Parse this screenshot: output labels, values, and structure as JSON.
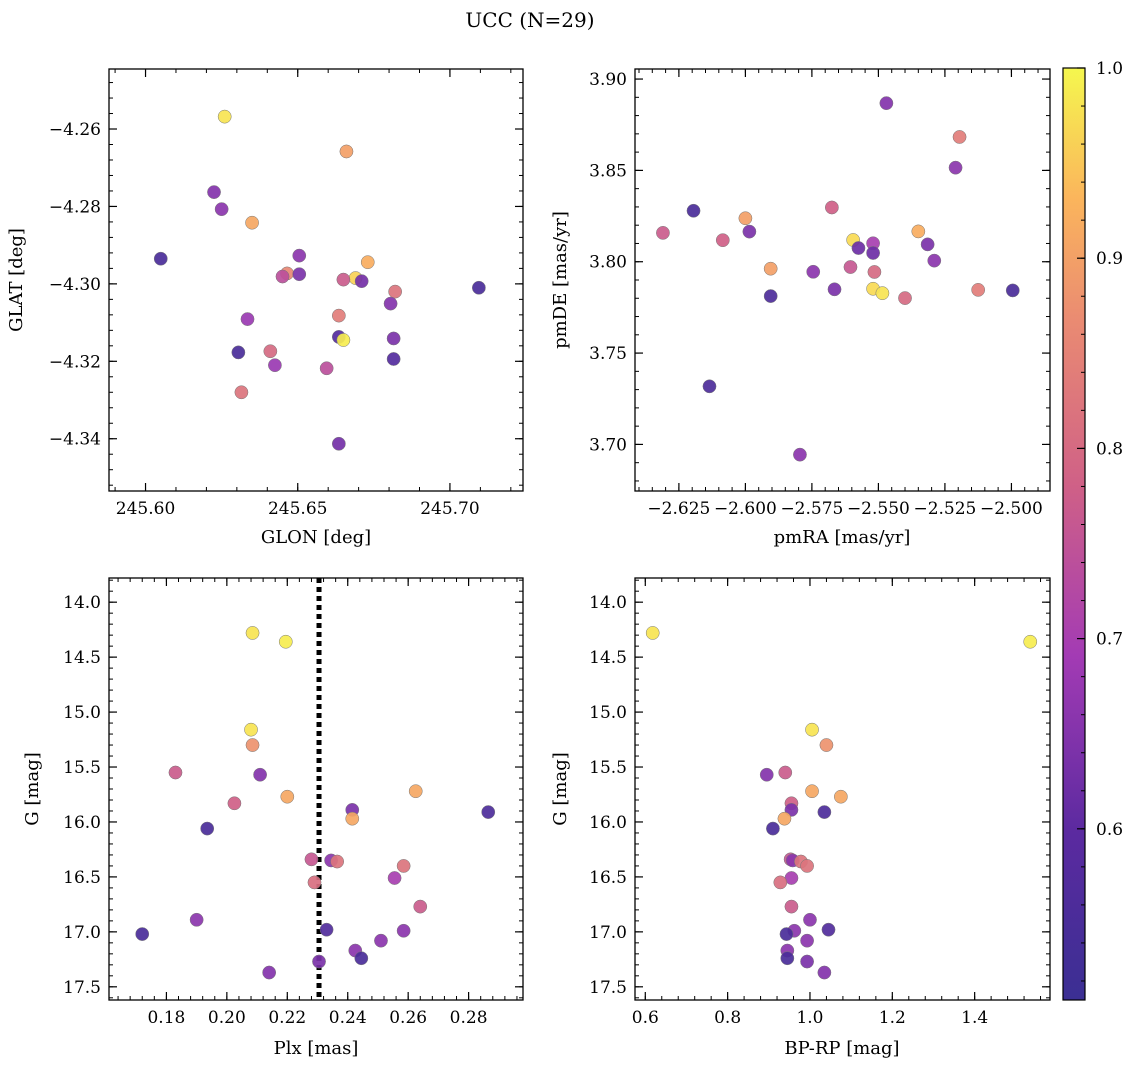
{
  "figure": {
    "title": "UCC (N=29)"
  },
  "colorbar": {
    "cmap": "plasma",
    "range": [
      0.51,
      1.0
    ],
    "ticks": [
      0.6,
      0.7,
      0.8,
      0.9,
      1.0
    ],
    "tick_labels": [
      "0.6",
      "0.7",
      "0.8",
      "0.9",
      "1.0"
    ]
  },
  "chart_data": [
    {
      "type": "scatter",
      "panel": "top-left",
      "xlabel": "GLON [deg]",
      "ylabel": "GLAT [deg]",
      "xlim": [
        245.588,
        245.724
      ],
      "ylim": [
        -4.3535,
        -4.2445
      ],
      "xticks": [
        245.6,
        245.65,
        245.7
      ],
      "xtick_labels": [
        "245.60",
        "245.65",
        "245.70"
      ],
      "yticks": [
        -4.34,
        -4.32,
        -4.3,
        -4.28,
        -4.26
      ],
      "ytick_labels": [
        "−4.34",
        "−4.32",
        "−4.30",
        "−4.28",
        "−4.26"
      ],
      "grid": false,
      "points": [
        {
          "x": 245.626,
          "y": -4.2568,
          "p": 0.98
        },
        {
          "x": 245.666,
          "y": -4.2658,
          "p": 0.9
        },
        {
          "x": 245.6225,
          "y": -4.2763,
          "p": 0.65
        },
        {
          "x": 245.625,
          "y": -4.2807,
          "p": 0.66
        },
        {
          "x": 245.635,
          "y": -4.2842,
          "p": 0.91
        },
        {
          "x": 245.605,
          "y": -4.2935,
          "p": 0.55
        },
        {
          "x": 245.6505,
          "y": -4.2927,
          "p": 0.66
        },
        {
          "x": 245.673,
          "y": -4.2944,
          "p": 0.92
        },
        {
          "x": 245.6465,
          "y": -4.2973,
          "p": 0.86
        },
        {
          "x": 245.6505,
          "y": -4.2975,
          "p": 0.64
        },
        {
          "x": 245.645,
          "y": -4.2981,
          "p": 0.74
        },
        {
          "x": 245.669,
          "y": -4.2985,
          "p": 0.96
        },
        {
          "x": 245.665,
          "y": -4.2989,
          "p": 0.77
        },
        {
          "x": 245.671,
          "y": -4.2993,
          "p": 0.63
        },
        {
          "x": 245.7095,
          "y": -4.301,
          "p": 0.55
        },
        {
          "x": 245.682,
          "y": -4.302,
          "p": 0.82
        },
        {
          "x": 245.6805,
          "y": -4.3051,
          "p": 0.65
        },
        {
          "x": 245.6635,
          "y": -4.3082,
          "p": 0.84
        },
        {
          "x": 245.6335,
          "y": -4.3091,
          "p": 0.68
        },
        {
          "x": 245.6635,
          "y": -4.3137,
          "p": 0.58
        },
        {
          "x": 245.6815,
          "y": -4.3141,
          "p": 0.64
        },
        {
          "x": 245.665,
          "y": -4.3145,
          "p": 0.99
        },
        {
          "x": 245.6305,
          "y": -4.3177,
          "p": 0.55
        },
        {
          "x": 245.641,
          "y": -4.3174,
          "p": 0.8
        },
        {
          "x": 245.6815,
          "y": -4.3194,
          "p": 0.58
        },
        {
          "x": 245.6425,
          "y": -4.321,
          "p": 0.68
        },
        {
          "x": 245.6595,
          "y": -4.3218,
          "p": 0.74
        },
        {
          "x": 245.6315,
          "y": -4.328,
          "p": 0.82
        },
        {
          "x": 245.6635,
          "y": -4.3413,
          "p": 0.63
        }
      ]
    },
    {
      "type": "scatter",
      "panel": "top-right",
      "xlabel": "pmRA [mas/yr]",
      "ylabel": "pmDE [mas/yr]",
      "xlim": [
        -2.6415,
        -2.4855
      ],
      "ylim": [
        3.6745,
        3.9055
      ],
      "xticks": [
        -2.625,
        -2.6,
        -2.575,
        -2.55,
        -2.525,
        -2.5
      ],
      "xtick_labels": [
        "−2.625",
        "−2.600",
        "−2.575",
        "−2.550",
        "−2.525",
        "−2.500"
      ],
      "yticks": [
        3.7,
        3.75,
        3.8,
        3.85,
        3.9
      ],
      "ytick_labels": [
        "3.70",
        "3.75",
        "3.80",
        "3.85",
        "3.90"
      ],
      "grid": false,
      "points": [
        {
          "x": -2.547,
          "y": 3.8868,
          "p": 0.65
        },
        {
          "x": -2.5195,
          "y": 3.8683,
          "p": 0.84
        },
        {
          "x": -2.521,
          "y": 3.8515,
          "p": 0.66
        },
        {
          "x": -2.631,
          "y": 3.8158,
          "p": 0.77
        },
        {
          "x": -2.6195,
          "y": 3.8279,
          "p": 0.55
        },
        {
          "x": -2.5675,
          "y": 3.8297,
          "p": 0.78
        },
        {
          "x": -2.6,
          "y": 3.8238,
          "p": 0.9
        },
        {
          "x": -2.5985,
          "y": 3.8165,
          "p": 0.64
        },
        {
          "x": -2.535,
          "y": 3.8166,
          "p": 0.92
        },
        {
          "x": -2.6085,
          "y": 3.8118,
          "p": 0.78
        },
        {
          "x": -2.5595,
          "y": 3.8119,
          "p": 0.97
        },
        {
          "x": -2.552,
          "y": 3.8101,
          "p": 0.7
        },
        {
          "x": -2.5315,
          "y": 3.8095,
          "p": 0.64
        },
        {
          "x": -2.5575,
          "y": 3.8075,
          "p": 0.62
        },
        {
          "x": -2.552,
          "y": 3.8048,
          "p": 0.62
        },
        {
          "x": -2.529,
          "y": 3.8006,
          "p": 0.66
        },
        {
          "x": -2.5605,
          "y": 3.7971,
          "p": 0.76
        },
        {
          "x": -2.5905,
          "y": 3.7962,
          "p": 0.9
        },
        {
          "x": -2.5745,
          "y": 3.7945,
          "p": 0.66
        },
        {
          "x": -2.5515,
          "y": 3.7944,
          "p": 0.8
        },
        {
          "x": -2.5665,
          "y": 3.7849,
          "p": 0.64
        },
        {
          "x": -2.552,
          "y": 3.7852,
          "p": 0.97
        },
        {
          "x": -2.5485,
          "y": 3.7828,
          "p": 0.98
        },
        {
          "x": -2.5125,
          "y": 3.7846,
          "p": 0.84
        },
        {
          "x": -2.4995,
          "y": 3.7843,
          "p": 0.55
        },
        {
          "x": -2.5905,
          "y": 3.7812,
          "p": 0.56
        },
        {
          "x": -2.54,
          "y": 3.7801,
          "p": 0.8
        },
        {
          "x": -2.6135,
          "y": 3.7318,
          "p": 0.56
        },
        {
          "x": -2.5795,
          "y": 3.6944,
          "p": 0.66
        }
      ]
    },
    {
      "type": "scatter",
      "panel": "bottom-left",
      "xlabel": "Plx [mas]",
      "ylabel": "G [mag]",
      "xlim": [
        0.161,
        0.298
      ],
      "ylim": [
        17.62,
        13.78
      ],
      "xticks": [
        0.18,
        0.2,
        0.22,
        0.24,
        0.26,
        0.28
      ],
      "xtick_labels": [
        "0.18",
        "0.20",
        "0.22",
        "0.24",
        "0.26",
        "0.28"
      ],
      "yticks": [
        14.0,
        14.5,
        15.0,
        15.5,
        16.0,
        16.5,
        17.0,
        17.5
      ],
      "ytick_labels": [
        "14.0",
        "14.5",
        "15.0",
        "15.5",
        "16.0",
        "16.5",
        "17.0",
        "17.5"
      ],
      "grid": false,
      "vline": {
        "x": 0.2305,
        "style": "dotted",
        "color": "#000000"
      },
      "points": [
        {
          "x": 0.2085,
          "y": 14.28,
          "p": 0.98
        },
        {
          "x": 0.2195,
          "y": 14.36,
          "p": 0.99
        },
        {
          "x": 0.208,
          "y": 15.16,
          "p": 0.98
        },
        {
          "x": 0.2085,
          "y": 15.3,
          "p": 0.88
        },
        {
          "x": 0.183,
          "y": 15.55,
          "p": 0.77
        },
        {
          "x": 0.211,
          "y": 15.57,
          "p": 0.65
        },
        {
          "x": 0.2625,
          "y": 15.72,
          "p": 0.91
        },
        {
          "x": 0.22,
          "y": 15.77,
          "p": 0.91
        },
        {
          "x": 0.2025,
          "y": 15.83,
          "p": 0.78
        },
        {
          "x": 0.2415,
          "y": 15.89,
          "p": 0.64
        },
        {
          "x": 0.2865,
          "y": 15.91,
          "p": 0.56
        },
        {
          "x": 0.2415,
          "y": 15.97,
          "p": 0.91
        },
        {
          "x": 0.1935,
          "y": 16.06,
          "p": 0.55
        },
        {
          "x": 0.228,
          "y": 16.34,
          "p": 0.76
        },
        {
          "x": 0.2345,
          "y": 16.35,
          "p": 0.66
        },
        {
          "x": 0.2365,
          "y": 16.36,
          "p": 0.82
        },
        {
          "x": 0.2585,
          "y": 16.4,
          "p": 0.82
        },
        {
          "x": 0.2555,
          "y": 16.51,
          "p": 0.7
        },
        {
          "x": 0.229,
          "y": 16.55,
          "p": 0.81
        },
        {
          "x": 0.264,
          "y": 16.77,
          "p": 0.77
        },
        {
          "x": 0.19,
          "y": 16.89,
          "p": 0.66
        },
        {
          "x": 0.233,
          "y": 16.98,
          "p": 0.57
        },
        {
          "x": 0.2585,
          "y": 16.99,
          "p": 0.66
        },
        {
          "x": 0.172,
          "y": 17.02,
          "p": 0.55
        },
        {
          "x": 0.251,
          "y": 17.08,
          "p": 0.66
        },
        {
          "x": 0.2425,
          "y": 17.17,
          "p": 0.66
        },
        {
          "x": 0.2445,
          "y": 17.24,
          "p": 0.55
        },
        {
          "x": 0.2305,
          "y": 17.27,
          "p": 0.64
        },
        {
          "x": 0.214,
          "y": 17.37,
          "p": 0.65
        }
      ]
    },
    {
      "type": "scatter",
      "panel": "bottom-right",
      "xlabel": "BP-RP [mag]",
      "ylabel": "G [mag]",
      "xlim": [
        0.575,
        1.583
      ],
      "ylim": [
        17.62,
        13.78
      ],
      "xticks": [
        0.6,
        0.8,
        1.0,
        1.2,
        1.4
      ],
      "xtick_labels": [
        "0.6",
        "0.8",
        "1.0",
        "1.2",
        "1.4"
      ],
      "yticks": [
        14.0,
        14.5,
        15.0,
        15.5,
        16.0,
        16.5,
        17.0,
        17.5
      ],
      "ytick_labels": [
        "14.0",
        "14.5",
        "15.0",
        "15.5",
        "16.0",
        "16.5",
        "17.0",
        "17.5"
      ],
      "grid": false,
      "points": [
        {
          "x": 0.618,
          "y": 14.28,
          "p": 0.98
        },
        {
          "x": 1.535,
          "y": 14.36,
          "p": 0.99
        },
        {
          "x": 1.005,
          "y": 15.16,
          "p": 0.98
        },
        {
          "x": 1.04,
          "y": 15.3,
          "p": 0.88
        },
        {
          "x": 0.94,
          "y": 15.55,
          "p": 0.77
        },
        {
          "x": 0.895,
          "y": 15.57,
          "p": 0.65
        },
        {
          "x": 1.005,
          "y": 15.72,
          "p": 0.91
        },
        {
          "x": 1.075,
          "y": 15.77,
          "p": 0.91
        },
        {
          "x": 0.955,
          "y": 15.83,
          "p": 0.78
        },
        {
          "x": 0.955,
          "y": 15.89,
          "p": 0.64
        },
        {
          "x": 1.035,
          "y": 15.91,
          "p": 0.56
        },
        {
          "x": 0.938,
          "y": 15.97,
          "p": 0.91
        },
        {
          "x": 0.91,
          "y": 16.06,
          "p": 0.55
        },
        {
          "x": 0.953,
          "y": 16.34,
          "p": 0.76
        },
        {
          "x": 0.958,
          "y": 16.35,
          "p": 0.66
        },
        {
          "x": 0.978,
          "y": 16.36,
          "p": 0.82
        },
        {
          "x": 0.993,
          "y": 16.4,
          "p": 0.82
        },
        {
          "x": 0.955,
          "y": 16.51,
          "p": 0.7
        },
        {
          "x": 0.928,
          "y": 16.55,
          "p": 0.81
        },
        {
          "x": 0.955,
          "y": 16.77,
          "p": 0.77
        },
        {
          "x": 1.0,
          "y": 16.89,
          "p": 0.66
        },
        {
          "x": 1.045,
          "y": 16.98,
          "p": 0.57
        },
        {
          "x": 0.962,
          "y": 16.99,
          "p": 0.66
        },
        {
          "x": 0.943,
          "y": 17.02,
          "p": 0.55
        },
        {
          "x": 0.993,
          "y": 17.08,
          "p": 0.66
        },
        {
          "x": 0.945,
          "y": 17.17,
          "p": 0.66
        },
        {
          "x": 0.945,
          "y": 17.24,
          "p": 0.55
        },
        {
          "x": 0.993,
          "y": 17.27,
          "p": 0.64
        },
        {
          "x": 1.035,
          "y": 17.37,
          "p": 0.65
        }
      ]
    }
  ]
}
